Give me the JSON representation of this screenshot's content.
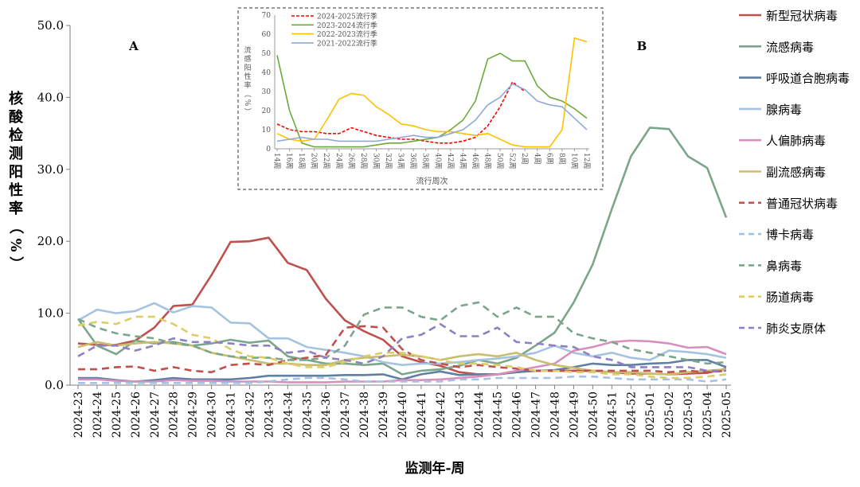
{
  "chart_data": [
    {
      "type": "line",
      "panel_label": "A",
      "xlabel": "监测年-周",
      "ylabel": "核酸检测阳性率（%）",
      "ylim": [
        0,
        50
      ],
      "yticks": [
        "0.0",
        "10.0",
        "20.0",
        "30.0",
        "40.0",
        "50.0"
      ],
      "categories": [
        "2024-23",
        "2024-24",
        "2024-25",
        "2024-26",
        "2024-27",
        "2024-28",
        "2024-29",
        "2024-30",
        "2024-31",
        "2024-32",
        "2024-33",
        "2024-34",
        "2024-35",
        "2024-36",
        "2024-37",
        "2024-38",
        "2024-39",
        "2024-40",
        "2024-41",
        "2024-42",
        "2024-43",
        "2024-44",
        "2024-45",
        "2024-46",
        "2024-47",
        "2024-48",
        "2024-49",
        "2024-50",
        "2024-51",
        "2024-52",
        "2025-01",
        "2025-02",
        "2025-03",
        "2025-04",
        "2025-05"
      ],
      "grid": false,
      "legend_position": "right",
      "series": [
        {
          "name": "新型冠状病毒",
          "color": "#c0504d",
          "dash": "solid",
          "values": [
            5.8,
            5.6,
            5.6,
            6.2,
            8.0,
            11.0,
            11.2,
            15.3,
            19.9,
            20.0,
            20.5,
            17.0,
            16.0,
            12.0,
            9.0,
            7.5,
            6.3,
            4.0,
            3.2,
            2.7,
            1.8,
            1.5,
            1.5,
            1.8,
            2.0,
            2.0,
            2.0,
            2.0,
            1.8,
            1.6,
            1.6,
            1.5,
            1.6,
            1.7,
            2.3
          ]
        },
        {
          "name": "流感病毒",
          "color": "#7ba68b",
          "dash": "solid",
          "values": [
            9.2,
            5.5,
            4.3,
            6.2,
            5.8,
            6.0,
            5.5,
            5.8,
            6.3,
            5.9,
            6.2,
            4.0,
            3.5,
            3.0,
            3.0,
            2.8,
            3.0,
            1.5,
            2.0,
            2.2,
            2.7,
            3.5,
            3.0,
            3.8,
            5.5,
            7.3,
            11.5,
            16.8,
            24.5,
            31.8,
            35.8,
            35.6,
            31.8,
            30.2,
            23.3
          ]
        },
        {
          "name": "呼吸道合胞病毒",
          "color": "#5f7fa3",
          "dash": "solid",
          "values": [
            1.0,
            1.0,
            0.7,
            0.5,
            0.7,
            1.0,
            0.8,
            0.8,
            0.8,
            1.0,
            1.3,
            1.3,
            1.3,
            1.3,
            1.4,
            1.4,
            1.5,
            0.8,
            1.5,
            1.9,
            1.4,
            1.5,
            1.5,
            1.8,
            2.0,
            2.1,
            2.5,
            3.0,
            2.8,
            2.8,
            3.0,
            3.1,
            3.5,
            3.5,
            2.5
          ]
        },
        {
          "name": "腺病毒",
          "color": "#a5c3e0",
          "dash": "solid",
          "values": [
            9.0,
            10.5,
            10.0,
            10.3,
            11.4,
            10.1,
            11.0,
            10.8,
            8.7,
            8.6,
            6.5,
            6.5,
            5.3,
            4.9,
            4.5,
            4.0,
            3.2,
            2.8,
            3.0,
            3.0,
            3.2,
            3.5,
            3.7,
            4.0,
            4.5,
            5.5,
            4.5,
            4.0,
            4.5,
            3.8,
            3.5,
            4.8,
            4.6,
            4.3,
            3.8
          ]
        },
        {
          "name": "人偏肺病毒",
          "color": "#d98fbe",
          "dash": "solid",
          "values": [
            0.8,
            0.8,
            0.6,
            0.5,
            0.5,
            0.7,
            0.6,
            0.6,
            0.5,
            0.5,
            0.5,
            0.4,
            0.4,
            0.4,
            0.5,
            0.5,
            0.5,
            0.7,
            0.7,
            0.8,
            1.0,
            1.2,
            1.5,
            2.0,
            2.5,
            3.0,
            4.8,
            5.3,
            6.0,
            6.2,
            6.1,
            5.8,
            5.2,
            5.3,
            4.3
          ]
        },
        {
          "name": "副流感病毒",
          "color": "#c9be70",
          "dash": "solid",
          "values": [
            5.3,
            6.0,
            5.5,
            5.8,
            6.0,
            5.8,
            5.5,
            4.5,
            4.0,
            3.5,
            3.0,
            3.0,
            2.8,
            2.8,
            3.5,
            3.8,
            4.0,
            4.2,
            4.0,
            3.5,
            4.0,
            4.3,
            4.0,
            4.5,
            3.5,
            2.8,
            2.4,
            2.0,
            1.8,
            1.8,
            1.6,
            1.5,
            1.8,
            2.0,
            2.2
          ]
        },
        {
          "name": "普通冠状病毒",
          "color": "#c0504d",
          "dash": "dashed",
          "values": [
            2.2,
            2.2,
            2.5,
            2.6,
            2.0,
            2.5,
            2.0,
            1.8,
            2.8,
            3.0,
            2.8,
            3.5,
            3.8,
            4.2,
            8.0,
            8.2,
            8.0,
            5.0,
            3.5,
            3.0,
            2.5,
            2.8,
            2.5,
            2.3,
            2.0,
            2.0,
            2.0,
            2.0,
            2.0,
            2.0,
            2.0,
            1.8,
            2.0,
            1.8,
            2.0
          ]
        },
        {
          "name": "博卡病毒",
          "color": "#a5c3e0",
          "dash": "dashed",
          "values": [
            0.3,
            0.3,
            0.3,
            0.3,
            0.3,
            0.3,
            0.3,
            0.3,
            0.3,
            0.3,
            0.5,
            0.8,
            1.0,
            1.0,
            0.8,
            0.5,
            0.5,
            0.5,
            0.5,
            0.5,
            0.8,
            0.8,
            1.0,
            1.0,
            1.0,
            1.0,
            1.2,
            1.2,
            1.0,
            0.8,
            0.8,
            0.8,
            0.8,
            0.5,
            0.8
          ]
        },
        {
          "name": "鼻病毒",
          "color": "#7ba68b",
          "dash": "dashed",
          "values": [
            9.2,
            8.0,
            7.2,
            6.8,
            6.5,
            5.8,
            5.5,
            4.5,
            4.0,
            3.8,
            3.8,
            3.5,
            3.5,
            3.8,
            5.5,
            9.8,
            10.8,
            10.8,
            9.5,
            9.0,
            11.0,
            11.5,
            9.5,
            10.8,
            9.5,
            9.5,
            7.2,
            6.5,
            6.0,
            5.0,
            4.5,
            4.0,
            3.5,
            3.0,
            3.2
          ]
        },
        {
          "name": "肠道病毒",
          "color": "#dccd6b",
          "dash": "dashed",
          "values": [
            8.3,
            8.8,
            8.5,
            9.5,
            9.5,
            8.5,
            7.0,
            6.5,
            5.0,
            4.0,
            3.8,
            3.0,
            2.5,
            2.5,
            3.2,
            4.0,
            4.5,
            4.5,
            4.0,
            3.5,
            3.0,
            3.0,
            2.8,
            2.5,
            2.0,
            2.0,
            1.8,
            1.8,
            1.5,
            1.5,
            1.2,
            1.0,
            1.0,
            1.2,
            1.5
          ]
        },
        {
          "name": "肺炎支原体",
          "color": "#8f7fc3",
          "dash": "dashed",
          "values": [
            4.0,
            5.5,
            5.5,
            4.8,
            5.5,
            6.5,
            6.0,
            6.0,
            5.8,
            5.5,
            5.5,
            4.5,
            4.8,
            3.8,
            3.5,
            3.0,
            4.0,
            6.5,
            7.0,
            8.5,
            6.8,
            6.8,
            8.0,
            6.0,
            5.8,
            5.5,
            5.3,
            4.0,
            3.5,
            2.5,
            2.5,
            2.5,
            2.5,
            2.0,
            2.0
          ]
        }
      ]
    },
    {
      "type": "line",
      "panel_label": "B",
      "xlabel": "流行周次",
      "ylabel": "流感阳性率（%）",
      "ylim": [
        0,
        70
      ],
      "yticks": [
        "0",
        "10",
        "20",
        "30",
        "40",
        "50",
        "60",
        "70"
      ],
      "categories": [
        "14周",
        "16周",
        "18周",
        "20周",
        "22周",
        "24周",
        "26周",
        "28周",
        "30周",
        "32周",
        "34周",
        "36周",
        "38周",
        "40周",
        "42周",
        "44周",
        "46周",
        "48周",
        "50周",
        "52周",
        "2周",
        "4周",
        "6周",
        "8周",
        "10周",
        "12周"
      ],
      "grid": false,
      "legend_position": "top-left",
      "series": [
        {
          "name": "2024-2025流行季",
          "color": "#ff0000",
          "dash": "dashed",
          "values": [
            13,
            10,
            9,
            9,
            8,
            8,
            11,
            9,
            7,
            6,
            5,
            5,
            4,
            3,
            3,
            4,
            6,
            12,
            22,
            35,
            30,
            null,
            null,
            null,
            null,
            null
          ]
        },
        {
          "name": "2023-2024流行季",
          "color": "#6aaa3a",
          "dash": "solid",
          "values": [
            49,
            20,
            3,
            1,
            1,
            1,
            1,
            1,
            2,
            3,
            3,
            4,
            5,
            6,
            10,
            15,
            25,
            47,
            50,
            46,
            46,
            33,
            27,
            25,
            21,
            16
          ]
        },
        {
          "name": "2022-2023流行季",
          "color": "#ffc000",
          "dash": "solid",
          "values": [
            8,
            5,
            4,
            5,
            15,
            26,
            29,
            28,
            22,
            18,
            13,
            12,
            10,
            9,
            9,
            8,
            7,
            8,
            5,
            2,
            1,
            1,
            1,
            10,
            58,
            56
          ]
        },
        {
          "name": "2021-2022流行季",
          "color": "#8fa9d9",
          "dash": "solid",
          "values": [
            4,
            5,
            6,
            5,
            5,
            4,
            4,
            4,
            4,
            5,
            6,
            7,
            6,
            6,
            8,
            10,
            15,
            23,
            27,
            34,
            31,
            25,
            23,
            22,
            16,
            10
          ]
        }
      ]
    }
  ]
}
